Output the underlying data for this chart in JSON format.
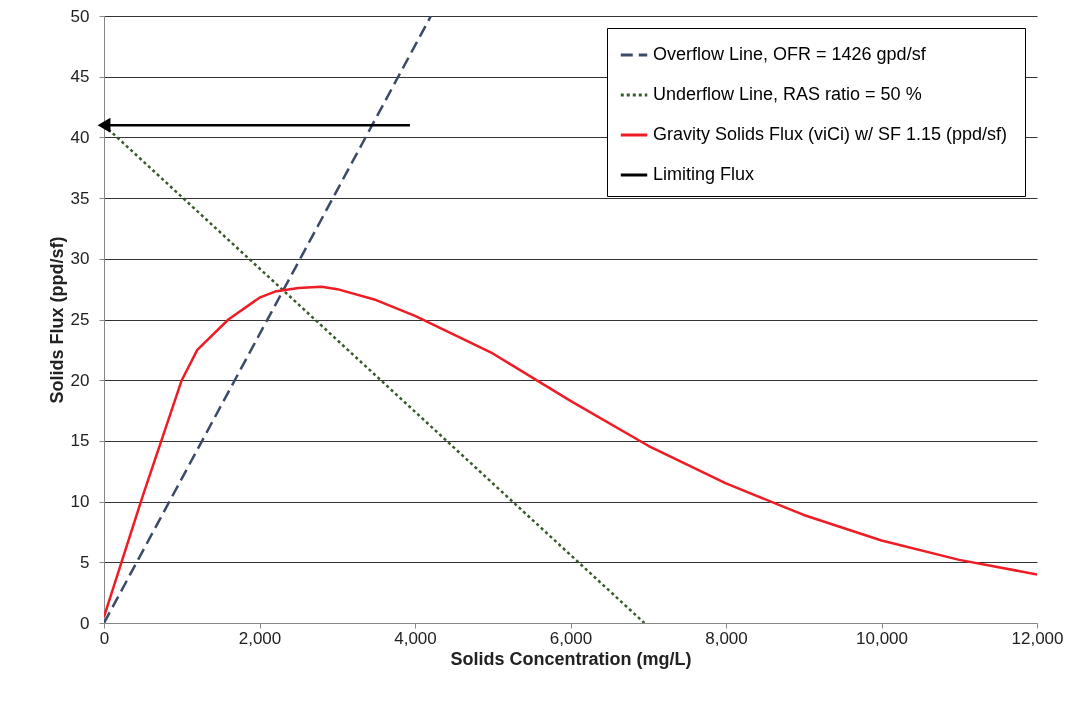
{
  "chart_data": {
    "type": "line",
    "xlabel": "Solids Concentration (mg/L)",
    "ylabel": "Solids Flux (ppd/sf)",
    "xlim": [
      0,
      12000
    ],
    "ylim": [
      0,
      50
    ],
    "xticks": [
      0,
      {
        "value": 2000,
        "label": "2,000"
      },
      {
        "value": 4000,
        "label": "4,000"
      },
      {
        "value": 6000,
        "label": "6,000"
      },
      {
        "value": 8000,
        "label": "8,000"
      },
      {
        "value": 10000,
        "label": "10,000"
      },
      {
        "value": 12000,
        "label": "12,000"
      }
    ],
    "yticks": [
      0,
      5,
      10,
      15,
      20,
      25,
      30,
      35,
      40,
      45,
      50
    ],
    "grid": "y",
    "legend": "top right",
    "series": [
      {
        "name": "Overflow Line, OFR = 1426 gpd/sf",
        "color": "#3b4a66",
        "line_style": "dashed",
        "x": [
          0,
          4205
        ],
        "values": [
          0,
          50
        ]
      },
      {
        "name": "Underflow  Line, RAS ratio  = 50 %",
        "color": "#375a2a",
        "line_style": "dotted",
        "x": [
          0,
          6950
        ],
        "values": [
          41,
          0
        ]
      },
      {
        "name": "Gravity Solids Flux (viCi) w/ SF  1.15 (ppd/sf)",
        "color": "#ee1c24",
        "line_style": "solid",
        "x": [
          0,
          500,
          1000,
          1200,
          1600,
          2000,
          2200,
          2500,
          2800,
          3000,
          3500,
          4000,
          5000,
          6000,
          7000,
          8000,
          9000,
          10000,
          11000,
          12000
        ],
        "values": [
          0.5,
          10.5,
          20,
          22.5,
          25,
          26.8,
          27.3,
          27.6,
          27.7,
          27.5,
          26.6,
          25.3,
          22.2,
          18.3,
          14.6,
          11.5,
          8.9,
          6.8,
          5.2,
          4.0
        ]
      },
      {
        "name": "Limiting Flux",
        "color": "#000000",
        "line_style": "solid",
        "marker": "triangle",
        "x": [
          0,
          3935
        ],
        "values": [
          41,
          41
        ]
      }
    ]
  }
}
